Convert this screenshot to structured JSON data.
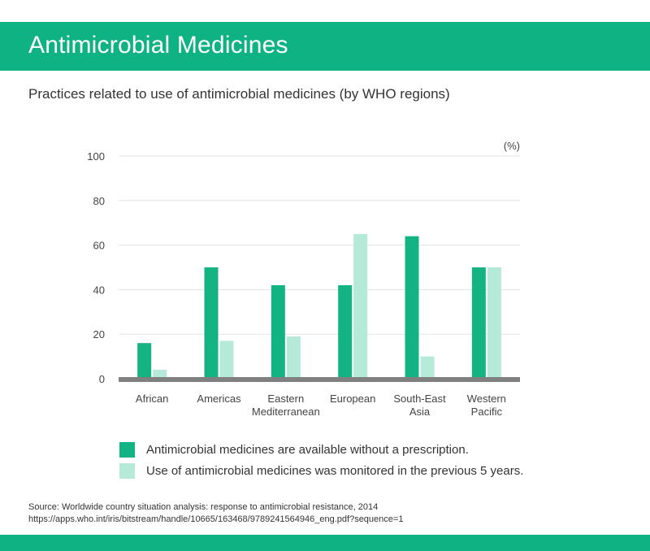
{
  "header": {
    "title": "Antimicrobial Medicines"
  },
  "subtitle": "Practices related to use of antimicrobial medicines (by WHO regions)",
  "source": {
    "line1": "Source: Worldwide country situation analysis: response to antimicrobial resistance, 2014",
    "line2": "https://apps.who.int/iris/bitstream/handle/10665/163468/9789241564946_eng.pdf?sequence=1"
  },
  "colors": {
    "brand": "#0fb383",
    "series1": "#13b383",
    "series2": "#b5e9d8",
    "baseline": "#808080",
    "grid": "#e3e3e3"
  },
  "chart_data": {
    "type": "bar",
    "unit_label": "(%)",
    "categories": [
      [
        "African"
      ],
      [
        "Americas"
      ],
      [
        "Eastern",
        "Mediterranean"
      ],
      [
        "European"
      ],
      [
        "South-East",
        "Asia"
      ],
      [
        "Western",
        "Pacific"
      ]
    ],
    "series": [
      {
        "name": "Antimicrobial medicines are available without a prescription.",
        "values": [
          16,
          50,
          42,
          42,
          64,
          50
        ]
      },
      {
        "name": "Use of antimicrobial medicines was monitored in the previous 5 years.",
        "values": [
          4,
          17,
          19,
          65,
          10,
          50
        ]
      }
    ],
    "yticks": [
      0,
      20,
      40,
      60,
      80,
      100
    ],
    "ylim": [
      0,
      100
    ],
    "grid": true,
    "legend_position": "bottom"
  }
}
